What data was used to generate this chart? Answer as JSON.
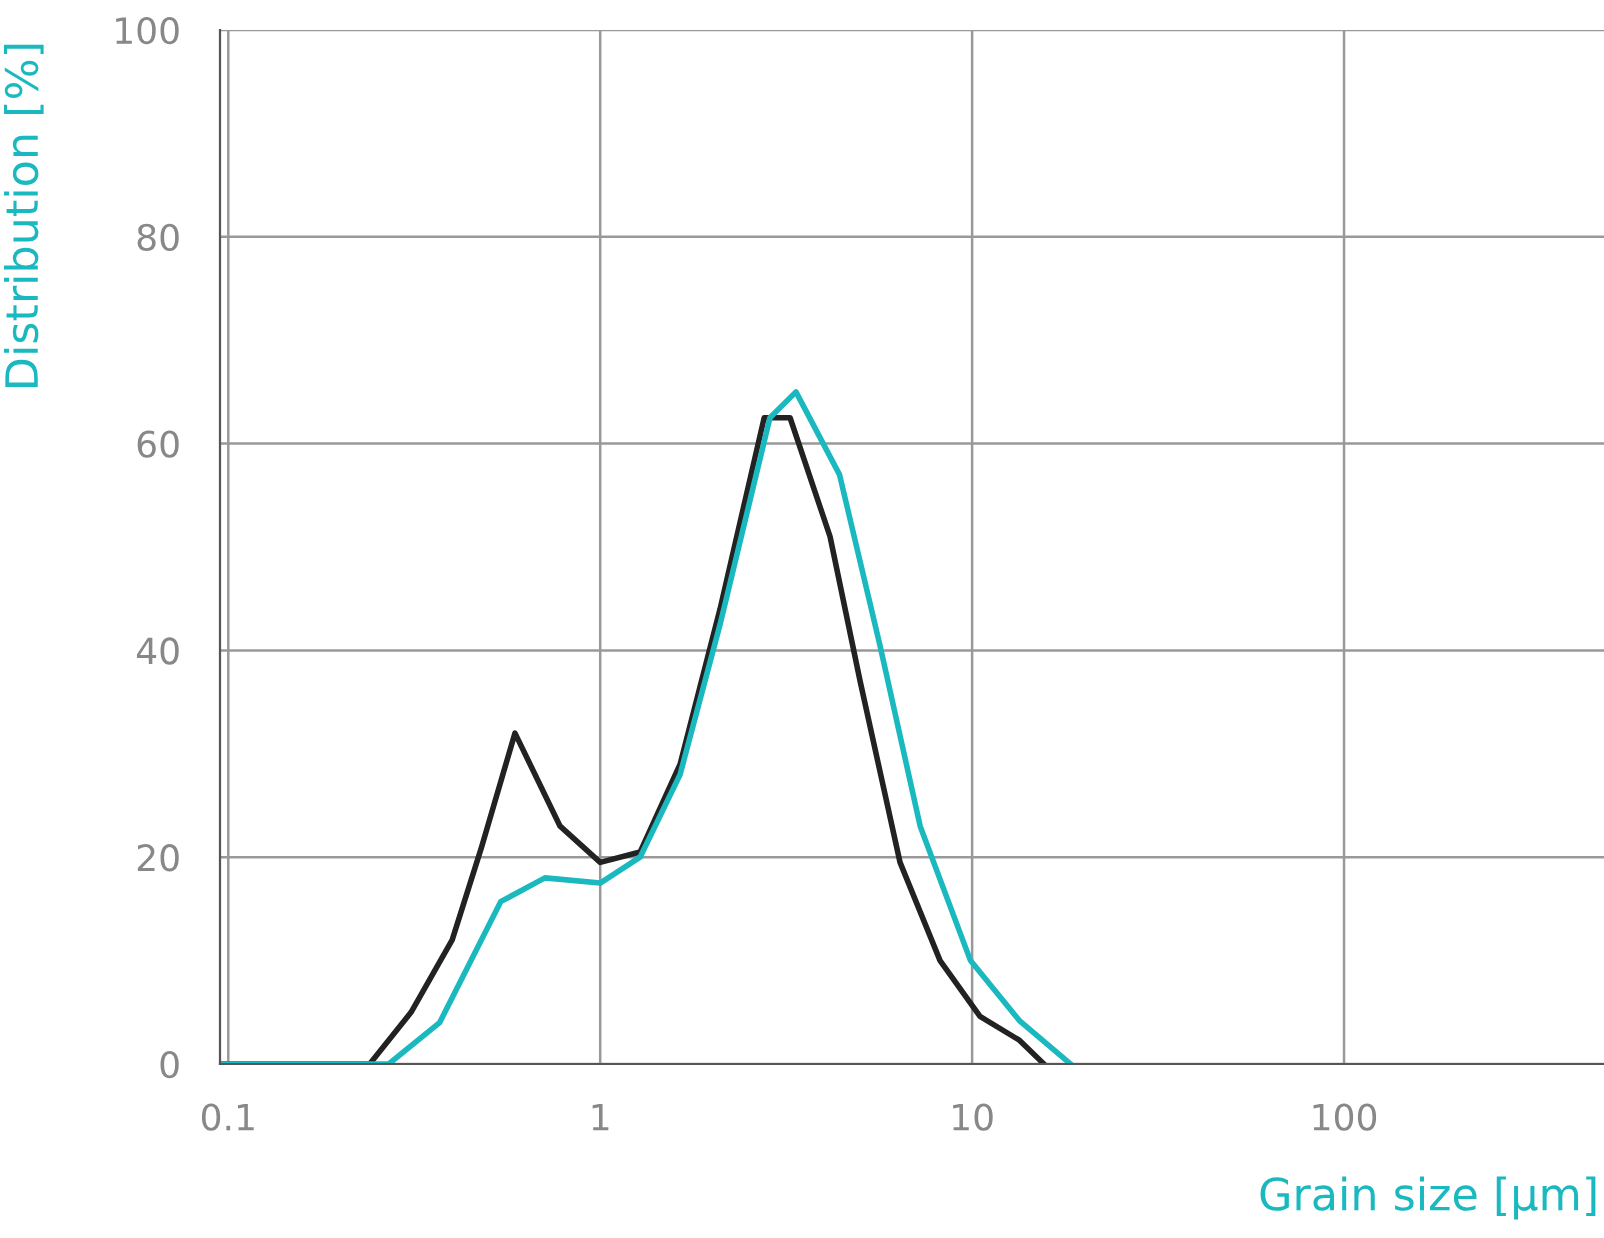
{
  "chart_data": {
    "type": "line",
    "xlabel": "Grain size [μm]",
    "ylabel": "Distribution [%]",
    "log": "x",
    "xlim": [
      0.095,
      500
    ],
    "xticks": [
      0.1,
      1,
      10,
      100
    ],
    "ylim": [
      0,
      100
    ],
    "yticks": [
      0,
      20,
      40,
      60,
      80,
      100
    ],
    "grid": true,
    "legend": false,
    "marker": "none",
    "line_style": "solid",
    "series": [
      {
        "color": "#222222",
        "x": [
          0.095,
          0.24,
          0.31,
          0.4,
          0.48,
          0.59,
          0.78,
          1.0,
          1.28,
          1.64,
          2.1,
          2.76,
          3.24,
          4.15,
          5.0,
          6.4,
          8.2,
          10.5,
          13.4,
          15.6
        ],
        "values": [
          0,
          0,
          5,
          12,
          21,
          32,
          23,
          19.5,
          20.5,
          29,
          44,
          62.5,
          62.5,
          51,
          37,
          19.5,
          10,
          4.6,
          2.3,
          0
        ]
      },
      {
        "color": "#1ab8bf",
        "x": [
          0.095,
          0.27,
          0.37,
          0.54,
          0.71,
          1.0,
          1.28,
          1.64,
          2.1,
          2.86,
          3.36,
          4.4,
          5.65,
          7.25,
          9.9,
          13.4,
          18.4
        ],
        "values": [
          0,
          0,
          4,
          15.7,
          18,
          17.5,
          20,
          28,
          42.5,
          62.5,
          65,
          57,
          40.5,
          23,
          10,
          4.2,
          0
        ]
      }
    ]
  }
}
